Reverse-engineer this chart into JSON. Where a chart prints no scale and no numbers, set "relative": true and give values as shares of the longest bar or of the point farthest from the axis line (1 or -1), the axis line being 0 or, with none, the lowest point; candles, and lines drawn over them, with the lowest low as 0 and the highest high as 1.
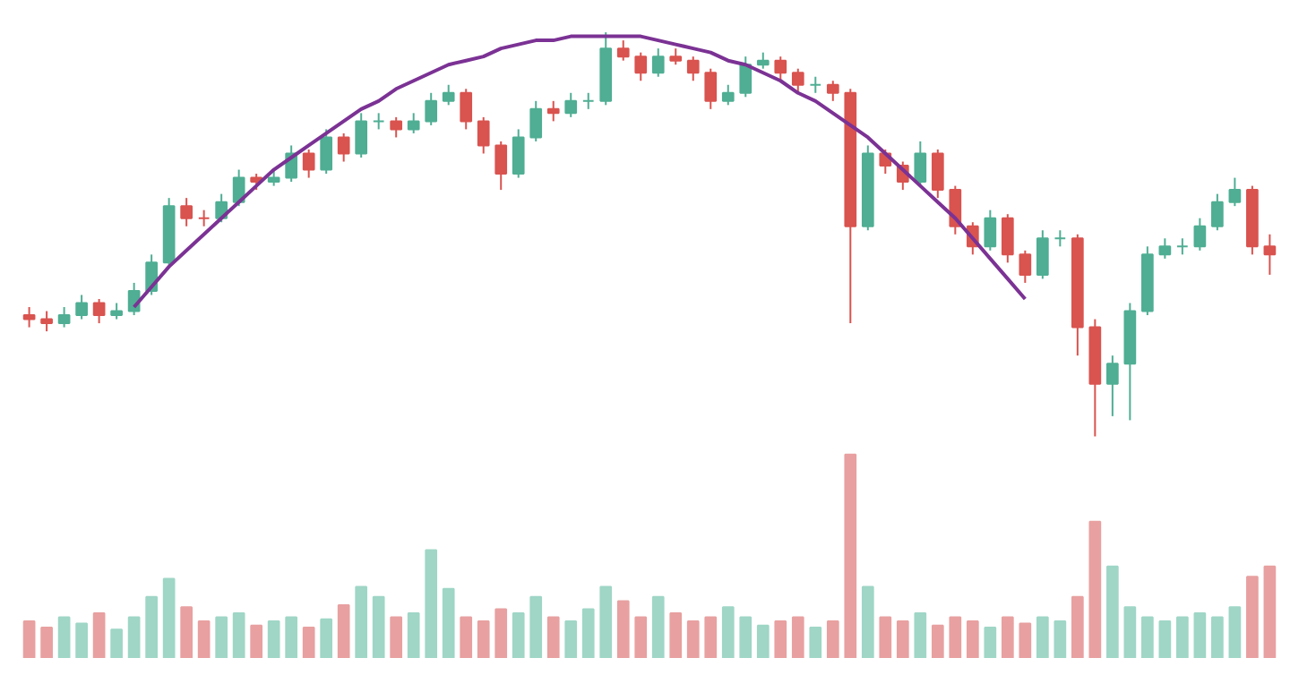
{
  "chart_data": [
    {
      "type": "candlestick",
      "relative": true,
      "categories": [
        null,
        null,
        null,
        null,
        null,
        null,
        null,
        null,
        null,
        null,
        null,
        null,
        null,
        null,
        null,
        null,
        null,
        null,
        null,
        null,
        null,
        null,
        null,
        null,
        null,
        null,
        null,
        null,
        null,
        null,
        null,
        null,
        null,
        null,
        null,
        null,
        null,
        null,
        null,
        null,
        null,
        null,
        null,
        null,
        null,
        null,
        null,
        null,
        null,
        null,
        null,
        null,
        null,
        null,
        null,
        null,
        null,
        null,
        null,
        null,
        null,
        null,
        null,
        null,
        null,
        null,
        null,
        null,
        null,
        null,
        null,
        null
      ],
      "colors": [
        "#d9534f",
        "#d9534f",
        "#4fae93",
        "#4fae93",
        "#d9534f",
        "#4fae93",
        "#4fae93",
        "#4fae93",
        "#4fae93",
        "#d9534f",
        "#d9534f",
        "#4fae93",
        "#4fae93",
        "#d9534f",
        "#4fae93",
        "#4fae93",
        "#d9534f",
        "#4fae93",
        "#d9534f",
        "#4fae93",
        "#4fae93",
        "#d9534f",
        "#4fae93",
        "#4fae93",
        "#4fae93",
        "#d9534f",
        "#d9534f",
        "#d9534f",
        "#4fae93",
        "#4fae93",
        "#d9534f",
        "#4fae93",
        "#4fae93",
        "#4fae93",
        "#d9534f",
        "#d9534f",
        "#4fae93",
        "#d9534f",
        "#d9534f",
        "#d9534f",
        "#4fae93",
        "#4fae93",
        "#4fae93",
        "#d9534f",
        "#d9534f",
        "#4fae93",
        "#d9534f",
        "#d9534f",
        "#4fae93",
        "#d9534f",
        "#d9534f",
        "#4fae93",
        "#d9534f",
        "#d9534f",
        "#d9534f",
        "#4fae93",
        "#d9534f",
        "#d9534f",
        "#4fae93",
        "#4fae93",
        "#d9534f",
        "#d9534f",
        "#4fae93",
        "#4fae93",
        "#4fae93",
        "#4fae93",
        "#4fae93",
        "#4fae93",
        "#4fae93",
        "#4fae93",
        "#d9534f",
        "#d9534f"
      ],
      "ohlc": [
        [
          0.3,
          0.32,
          0.27,
          0.29
        ],
        [
          0.29,
          0.31,
          0.26,
          0.28
        ],
        [
          0.28,
          0.32,
          0.27,
          0.3
        ],
        [
          0.3,
          0.35,
          0.29,
          0.33
        ],
        [
          0.33,
          0.34,
          0.28,
          0.3
        ],
        [
          0.3,
          0.33,
          0.29,
          0.31
        ],
        [
          0.31,
          0.38,
          0.3,
          0.36
        ],
        [
          0.36,
          0.45,
          0.35,
          0.43
        ],
        [
          0.43,
          0.59,
          0.42,
          0.57
        ],
        [
          0.57,
          0.59,
          0.52,
          0.54
        ],
        [
          0.54,
          0.56,
          0.52,
          0.54
        ],
        [
          0.54,
          0.6,
          0.53,
          0.58
        ],
        [
          0.58,
          0.66,
          0.57,
          0.64
        ],
        [
          0.64,
          0.65,
          0.61,
          0.63
        ],
        [
          0.63,
          0.66,
          0.62,
          0.64
        ],
        [
          0.64,
          0.72,
          0.63,
          0.7
        ],
        [
          0.7,
          0.71,
          0.64,
          0.66
        ],
        [
          0.66,
          0.76,
          0.65,
          0.74
        ],
        [
          0.74,
          0.75,
          0.68,
          0.7
        ],
        [
          0.7,
          0.8,
          0.69,
          0.78
        ],
        [
          0.78,
          0.8,
          0.76,
          0.78
        ],
        [
          0.78,
          0.79,
          0.74,
          0.76
        ],
        [
          0.76,
          0.8,
          0.75,
          0.78
        ],
        [
          0.78,
          0.85,
          0.77,
          0.83
        ],
        [
          0.83,
          0.87,
          0.82,
          0.85
        ],
        [
          0.85,
          0.86,
          0.76,
          0.78
        ],
        [
          0.78,
          0.79,
          0.7,
          0.72
        ],
        [
          0.72,
          0.73,
          0.61,
          0.65
        ],
        [
          0.65,
          0.76,
          0.64,
          0.74
        ],
        [
          0.74,
          0.83,
          0.73,
          0.81
        ],
        [
          0.81,
          0.83,
          0.78,
          0.8
        ],
        [
          0.8,
          0.85,
          0.79,
          0.83
        ],
        [
          0.83,
          0.85,
          0.81,
          0.83
        ],
        [
          0.83,
          1.0,
          0.82,
          0.96
        ],
        [
          0.96,
          0.98,
          0.93,
          0.94
        ],
        [
          0.94,
          0.95,
          0.88,
          0.9
        ],
        [
          0.9,
          0.96,
          0.89,
          0.94
        ],
        [
          0.94,
          0.96,
          0.92,
          0.93
        ],
        [
          0.93,
          0.94,
          0.88,
          0.9
        ],
        [
          0.9,
          0.91,
          0.81,
          0.83
        ],
        [
          0.83,
          0.87,
          0.82,
          0.85
        ],
        [
          0.85,
          0.94,
          0.84,
          0.92
        ],
        [
          0.92,
          0.95,
          0.91,
          0.93
        ],
        [
          0.93,
          0.94,
          0.88,
          0.9
        ],
        [
          0.9,
          0.91,
          0.85,
          0.87
        ],
        [
          0.87,
          0.89,
          0.85,
          0.87
        ],
        [
          0.87,
          0.88,
          0.83,
          0.85
        ],
        [
          0.85,
          0.86,
          0.28,
          0.52
        ],
        [
          0.52,
          0.72,
          0.51,
          0.7
        ],
        [
          0.7,
          0.71,
          0.65,
          0.67
        ],
        [
          0.67,
          0.68,
          0.61,
          0.63
        ],
        [
          0.63,
          0.73,
          0.62,
          0.7
        ],
        [
          0.7,
          0.71,
          0.59,
          0.61
        ],
        [
          0.61,
          0.62,
          0.5,
          0.52
        ],
        [
          0.52,
          0.53,
          0.45,
          0.47
        ],
        [
          0.47,
          0.56,
          0.46,
          0.54
        ],
        [
          0.54,
          0.55,
          0.43,
          0.45
        ],
        [
          0.45,
          0.46,
          0.38,
          0.4
        ],
        [
          0.4,
          0.51,
          0.39,
          0.49
        ],
        [
          0.49,
          0.51,
          0.47,
          0.49
        ],
        [
          0.49,
          0.5,
          0.2,
          0.27
        ],
        [
          0.27,
          0.29,
          0.0,
          0.13
        ],
        [
          0.13,
          0.2,
          0.05,
          0.18
        ],
        [
          0.18,
          0.33,
          0.04,
          0.31
        ],
        [
          0.31,
          0.47,
          0.3,
          0.45
        ],
        [
          0.45,
          0.49,
          0.44,
          0.47
        ],
        [
          0.47,
          0.49,
          0.45,
          0.47
        ],
        [
          0.47,
          0.54,
          0.46,
          0.52
        ],
        [
          0.52,
          0.6,
          0.51,
          0.58
        ],
        [
          0.58,
          0.64,
          0.57,
          0.61
        ],
        [
          0.61,
          0.62,
          0.45,
          0.47
        ],
        [
          0.47,
          0.5,
          0.4,
          0.45
        ]
      ],
      "series": [
        {
          "type": "line",
          "color": "#7b3294",
          "values": [
            null,
            null,
            null,
            null,
            null,
            null,
            0.32,
            0.37,
            0.42,
            0.46,
            0.5,
            0.54,
            0.58,
            0.62,
            0.66,
            0.69,
            0.72,
            0.75,
            0.78,
            0.81,
            0.83,
            0.86,
            0.88,
            0.9,
            0.92,
            0.93,
            0.94,
            0.96,
            0.97,
            0.98,
            0.98,
            0.99,
            0.99,
            0.99,
            0.99,
            0.99,
            0.98,
            0.97,
            0.96,
            0.95,
            0.93,
            0.92,
            0.9,
            0.88,
            0.85,
            0.83,
            0.8,
            0.77,
            0.74,
            0.7,
            0.66,
            0.62,
            0.58,
            0.54,
            0.49,
            0.44,
            0.39,
            0.34,
            null,
            null,
            null,
            null,
            null,
            null,
            null,
            null,
            null,
            null,
            null,
            null,
            null,
            null
          ]
        }
      ]
    },
    {
      "type": "bar",
      "relative": true,
      "categories": [
        null,
        null,
        null,
        null,
        null,
        null,
        null,
        null,
        null,
        null,
        null,
        null,
        null,
        null,
        null,
        null,
        null,
        null,
        null,
        null,
        null,
        null,
        null,
        null,
        null,
        null,
        null,
        null,
        null,
        null,
        null,
        null,
        null,
        null,
        null,
        null,
        null,
        null,
        null,
        null,
        null,
        null,
        null,
        null,
        null,
        null,
        null,
        null,
        null,
        null,
        null,
        null,
        null,
        null,
        null,
        null,
        null,
        null,
        null,
        null,
        null,
        null,
        null,
        null,
        null,
        null,
        null,
        null,
        null,
        null,
        null,
        null
      ],
      "values": [
        0.18,
        0.15,
        0.2,
        0.17,
        0.22,
        0.14,
        0.2,
        0.3,
        0.39,
        0.25,
        0.18,
        0.2,
        0.22,
        0.16,
        0.18,
        0.2,
        0.15,
        0.19,
        0.26,
        0.35,
        0.3,
        0.2,
        0.22,
        0.53,
        0.34,
        0.2,
        0.18,
        0.24,
        0.22,
        0.3,
        0.2,
        0.18,
        0.24,
        0.35,
        0.28,
        0.2,
        0.3,
        0.22,
        0.18,
        0.2,
        0.25,
        0.2,
        0.16,
        0.18,
        0.2,
        0.15,
        0.18,
        1.0,
        0.35,
        0.2,
        0.18,
        0.22,
        0.16,
        0.2,
        0.18,
        0.15,
        0.2,
        0.17,
        0.2,
        0.18,
        0.3,
        0.67,
        0.45,
        0.25,
        0.2,
        0.18,
        0.2,
        0.22,
        0.2,
        0.25,
        0.4,
        0.45
      ],
      "colors": [
        "#e8a0a0",
        "#e8a0a0",
        "#9fd6c6",
        "#9fd6c6",
        "#e8a0a0",
        "#9fd6c6",
        "#9fd6c6",
        "#9fd6c6",
        "#9fd6c6",
        "#e8a0a0",
        "#e8a0a0",
        "#9fd6c6",
        "#9fd6c6",
        "#e8a0a0",
        "#9fd6c6",
        "#9fd6c6",
        "#e8a0a0",
        "#9fd6c6",
        "#e8a0a0",
        "#9fd6c6",
        "#9fd6c6",
        "#e8a0a0",
        "#9fd6c6",
        "#9fd6c6",
        "#9fd6c6",
        "#e8a0a0",
        "#e8a0a0",
        "#e8a0a0",
        "#9fd6c6",
        "#9fd6c6",
        "#e8a0a0",
        "#9fd6c6",
        "#9fd6c6",
        "#9fd6c6",
        "#e8a0a0",
        "#e8a0a0",
        "#9fd6c6",
        "#e8a0a0",
        "#e8a0a0",
        "#e8a0a0",
        "#9fd6c6",
        "#9fd6c6",
        "#9fd6c6",
        "#e8a0a0",
        "#e8a0a0",
        "#9fd6c6",
        "#e8a0a0",
        "#e8a0a0",
        "#9fd6c6",
        "#e8a0a0",
        "#e8a0a0",
        "#9fd6c6",
        "#e8a0a0",
        "#e8a0a0",
        "#e8a0a0",
        "#9fd6c6",
        "#e8a0a0",
        "#e8a0a0",
        "#9fd6c6",
        "#9fd6c6",
        "#e8a0a0",
        "#e8a0a0",
        "#9fd6c6",
        "#9fd6c6",
        "#9fd6c6",
        "#9fd6c6",
        "#9fd6c6",
        "#9fd6c6",
        "#9fd6c6",
        "#9fd6c6",
        "#e8a0a0",
        "#e8a0a0"
      ]
    }
  ]
}
